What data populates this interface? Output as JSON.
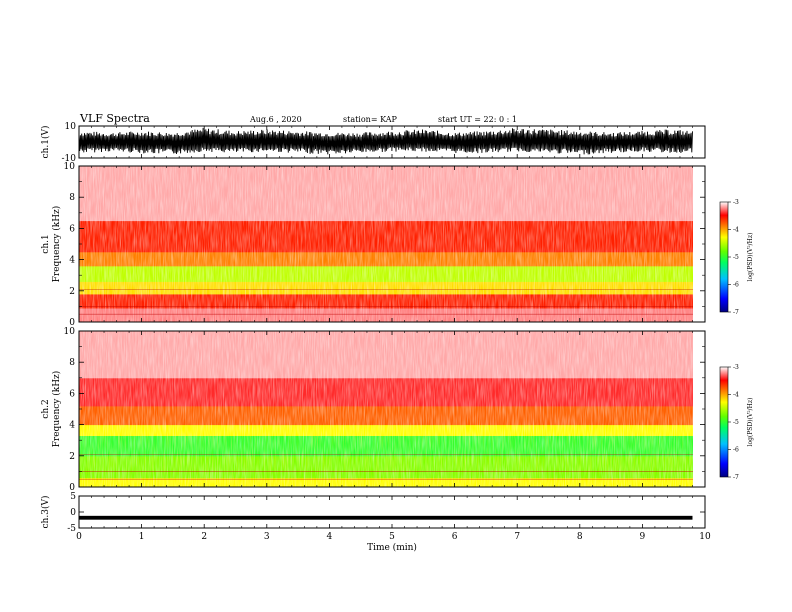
{
  "header": {
    "title": "VLF Spectra",
    "date": "Aug.6 , 2020",
    "station": "station= KAP",
    "start": "start UT = 22: 0 : 1"
  },
  "chart_data": [
    {
      "type": "line",
      "panel": "ch1-waveform",
      "ylabel": "ch.1(V)",
      "ylim": [
        -10,
        10
      ],
      "y_ticks": [
        "10",
        "-10"
      ],
      "xlim": [
        0,
        10
      ],
      "x": [
        0,
        0.5,
        1,
        1.5,
        2,
        2.5,
        3,
        3.5,
        4,
        4.5,
        5,
        5.5,
        6,
        6.5,
        7,
        7.5,
        8,
        8.5,
        9,
        9.5,
        9.8
      ],
      "y_upper": [
        7,
        6,
        7,
        6,
        9,
        7,
        8,
        7,
        6,
        6,
        7,
        8,
        6,
        7,
        9,
        8,
        7,
        6,
        7,
        8,
        7
      ],
      "y_lower": [
        -7,
        -6,
        -7,
        -8,
        -6,
        -7,
        -6,
        -7,
        -8,
        -7,
        -6,
        -6,
        -7,
        -7,
        -6,
        -7,
        -8,
        -7,
        -6,
        -7,
        -7
      ]
    },
    {
      "type": "heatmap",
      "panel": "ch1-spectrogram",
      "ylabel": "ch.1",
      "ylabel2": "Frequency (kHz)",
      "ylim": [
        0,
        10
      ],
      "y_ticks": [
        "0",
        "2",
        "4",
        "6",
        "8",
        "10"
      ],
      "xlim": [
        0,
        10
      ],
      "colorbar": {
        "ticks": [
          "-3",
          "-4",
          "-5",
          "-6",
          "-7"
        ],
        "label": "log(PSD)(V²/Hz)",
        "range": [
          -7,
          -3
        ]
      },
      "bands_khz": [
        {
          "from": 0,
          "to": 0.9,
          "level": -3.2
        },
        {
          "from": 0.9,
          "to": 1.8,
          "level": -3.6
        },
        {
          "from": 1.8,
          "to": 2.6,
          "level": -4.2
        },
        {
          "from": 2.6,
          "to": 3.6,
          "level": -4.5
        },
        {
          "from": 3.6,
          "to": 4.5,
          "level": -3.9
        },
        {
          "from": 4.5,
          "to": 6.5,
          "level": -3.6
        },
        {
          "from": 6.5,
          "to": 10,
          "level": -3.1
        }
      ]
    },
    {
      "type": "heatmap",
      "panel": "ch2-spectrogram",
      "ylabel": "ch.2",
      "ylabel2": "Frequency (kHz)",
      "ylim": [
        0,
        10
      ],
      "y_ticks": [
        "0",
        "2",
        "4",
        "6",
        "8",
        "10"
      ],
      "xlim": [
        0,
        10
      ],
      "colorbar": {
        "ticks": [
          "-3",
          "-4",
          "-5",
          "-6",
          "-7"
        ],
        "label": "log(PSD)(V²/Hz)",
        "range": [
          -7,
          -3
        ]
      },
      "bands_khz": [
        {
          "from": 0,
          "to": 0.6,
          "level": -4.3
        },
        {
          "from": 0.6,
          "to": 2.0,
          "level": -4.7
        },
        {
          "from": 2.0,
          "to": 3.3,
          "level": -5.0
        },
        {
          "from": 3.3,
          "to": 4.0,
          "level": -4.3
        },
        {
          "from": 4.0,
          "to": 5.2,
          "level": -3.8
        },
        {
          "from": 5.2,
          "to": 7.0,
          "level": -3.4
        },
        {
          "from": 7.0,
          "to": 10,
          "level": -3.1
        }
      ]
    },
    {
      "type": "line",
      "panel": "ch3-waveform",
      "ylabel": "ch.3(V)",
      "ylim": [
        -5,
        5
      ],
      "y_ticks": [
        "5",
        "0",
        "-5"
      ],
      "xlim": [
        0,
        10
      ],
      "x": [
        0,
        9.8
      ],
      "y_upper": [
        -1.2,
        -1.2
      ],
      "y_lower": [
        -2.4,
        -2.4
      ]
    }
  ],
  "xaxis": {
    "label": "Time (min)",
    "ticks": [
      "0",
      "1",
      "2",
      "3",
      "4",
      "5",
      "6",
      "7",
      "8",
      "9",
      "10"
    ]
  }
}
